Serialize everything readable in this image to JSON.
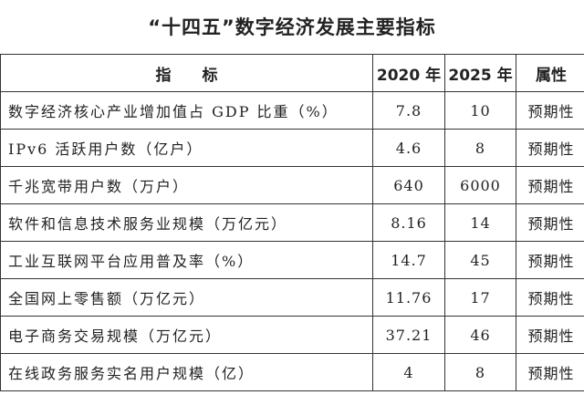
{
  "title": "“十四五”数字经济发展主要指标",
  "headers": {
    "indicator": "指　　标",
    "y2020": "2020 年",
    "y2025": "2025 年",
    "attribute": "属性"
  },
  "rows": [
    {
      "indicator": "数字经济核心产业增加值占 GDP 比重（%）",
      "y2020": "7.8",
      "y2025": "10",
      "attribute": "预期性"
    },
    {
      "indicator": "IPv6 活跃用户数（亿户）",
      "y2020": "4.6",
      "y2025": "8",
      "attribute": "预期性"
    },
    {
      "indicator": "千兆宽带用户数（万户）",
      "y2020": "640",
      "y2025": "6000",
      "attribute": "预期性"
    },
    {
      "indicator": "软件和信息技术服务业规模（万亿元）",
      "y2020": "8.16",
      "y2025": "14",
      "attribute": "预期性"
    },
    {
      "indicator": "工业互联网平台应用普及率（%）",
      "y2020": "14.7",
      "y2025": "45",
      "attribute": "预期性"
    },
    {
      "indicator": "全国网上零售额（万亿元）",
      "y2020": "11.76",
      "y2025": "17",
      "attribute": "预期性"
    },
    {
      "indicator": "电子商务交易规模（万亿元）",
      "y2020": "37.21",
      "y2025": "46",
      "attribute": "预期性"
    },
    {
      "indicator": "在线政务服务实名用户规模（亿）",
      "y2020": "4",
      "y2025": "8",
      "attribute": "预期性"
    }
  ]
}
